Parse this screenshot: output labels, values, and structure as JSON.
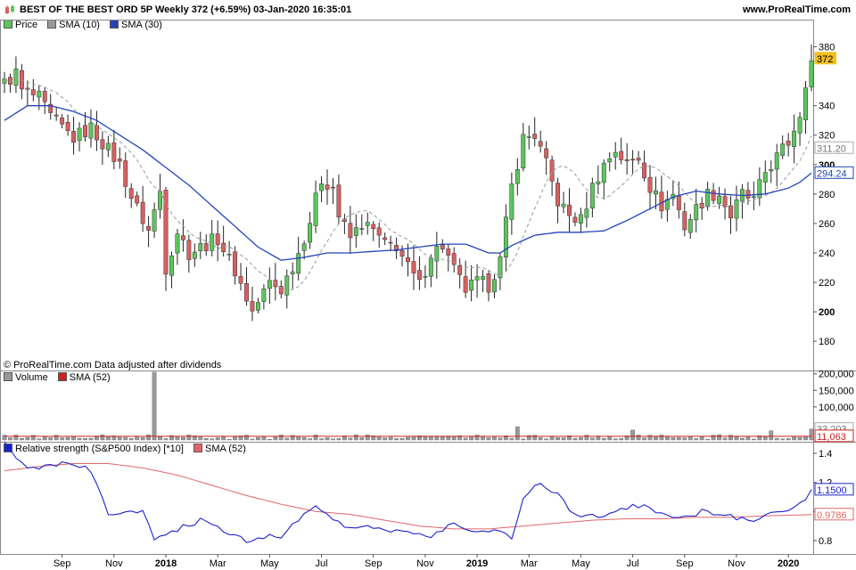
{
  "header": {
    "title": "BEST OF THE BEST ORD 5P Weekly 372 (+6.59%) 03-Jan-2020 16:35:01",
    "site": "www.ProRealTime.com"
  },
  "notice": "© ProRealTime.com  Data adjusted after dividends",
  "colors": {
    "up": "#5cc55c",
    "down": "#d96060",
    "sma10": "#999999",
    "sma30": "#2244bb",
    "volume": "#999999",
    "vol_sma": "#cc2222",
    "rs": "#1a22cc",
    "rs_sma": "#e06666",
    "price_tag": "#f0c020"
  },
  "chart_data": [
    {
      "type": "candlestick",
      "legend": [
        {
          "label": "Price",
          "color_key": "up"
        },
        {
          "label": "SMA (10)",
          "color_key": "sma10"
        },
        {
          "label": "SMA (30)",
          "color_key": "sma30"
        }
      ],
      "ylim": [
        168,
        390
      ],
      "yticks": [
        180,
        200,
        220,
        240,
        260,
        280,
        300,
        320,
        340,
        380
      ],
      "yticks_bold": [
        200,
        300
      ],
      "value_tags": [
        {
          "text": "372",
          "value": 372,
          "style": "price"
        },
        {
          "text": "311.20",
          "value": 311.2,
          "style": "sma10"
        },
        {
          "text": "294.24",
          "value": 294.24,
          "style": "sma30"
        }
      ],
      "anchors": [
        [
          0,
          355
        ],
        [
          2,
          362
        ],
        [
          3,
          350
        ],
        [
          6,
          345
        ],
        [
          8,
          332
        ],
        [
          12,
          318
        ],
        [
          15,
          325
        ],
        [
          20,
          300
        ],
        [
          22,
          278
        ],
        [
          25,
          255
        ],
        [
          27,
          282
        ],
        [
          28,
          230
        ],
        [
          30,
          255
        ],
        [
          32,
          240
        ],
        [
          35,
          246
        ],
        [
          37,
          250
        ],
        [
          40,
          228
        ],
        [
          43,
          200
        ],
        [
          46,
          220
        ],
        [
          48,
          215
        ],
        [
          51,
          240
        ],
        [
          53,
          262
        ],
        [
          55,
          290
        ],
        [
          57,
          285
        ],
        [
          58,
          265
        ],
        [
          60,
          250
        ],
        [
          62,
          260
        ],
        [
          64,
          255
        ],
        [
          66,
          245
        ],
        [
          68,
          245
        ],
        [
          70,
          230
        ],
        [
          72,
          218
        ],
        [
          74,
          240
        ],
        [
          76,
          245
        ],
        [
          78,
          228
        ],
        [
          80,
          215
        ],
        [
          82,
          220
        ],
        [
          84,
          218
        ],
        [
          86,
          235
        ],
        [
          88,
          285
        ],
        [
          90,
          318
        ],
        [
          92,
          320
        ],
        [
          94,
          300
        ],
        [
          96,
          275
        ],
        [
          98,
          265
        ],
        [
          100,
          262
        ],
        [
          102,
          285
        ],
        [
          104,
          300
        ],
        [
          106,
          310
        ],
        [
          108,
          300
        ],
        [
          110,
          305
        ],
        [
          112,
          285
        ],
        [
          114,
          272
        ],
        [
          116,
          280
        ],
        [
          118,
          258
        ],
        [
          120,
          270
        ],
        [
          122,
          280
        ],
        [
          124,
          280
        ],
        [
          126,
          265
        ],
        [
          128,
          280
        ],
        [
          130,
          275
        ],
        [
          132,
          295
        ],
        [
          134,
          305
        ],
        [
          136,
          315
        ],
        [
          138,
          335
        ],
        [
          139,
          357
        ],
        [
          140,
          370
        ]
      ],
      "sma30_anchors": [
        [
          0,
          330
        ],
        [
          4,
          340
        ],
        [
          8,
          340
        ],
        [
          12,
          336
        ],
        [
          16,
          330
        ],
        [
          20,
          320
        ],
        [
          24,
          310
        ],
        [
          28,
          298
        ],
        [
          32,
          286
        ],
        [
          36,
          272
        ],
        [
          40,
          258
        ],
        [
          44,
          244
        ],
        [
          48,
          235
        ],
        [
          52,
          237
        ],
        [
          56,
          240
        ],
        [
          60,
          240
        ],
        [
          64,
          241
        ],
        [
          68,
          242
        ],
        [
          72,
          244
        ],
        [
          76,
          246
        ],
        [
          80,
          246
        ],
        [
          84,
          240
        ],
        [
          86,
          240
        ],
        [
          88,
          245
        ],
        [
          92,
          252
        ],
        [
          96,
          254
        ],
        [
          100,
          254
        ],
        [
          104,
          255
        ],
        [
          108,
          262
        ],
        [
          112,
          270
        ],
        [
          116,
          278
        ],
        [
          120,
          282
        ],
        [
          124,
          280
        ],
        [
          128,
          279
        ],
        [
          132,
          280
        ],
        [
          136,
          284
        ],
        [
          138,
          288
        ],
        [
          140,
          294.24
        ]
      ]
    },
    {
      "type": "bar",
      "legend": [
        {
          "label": "Volume",
          "color_key": "volume"
        },
        {
          "label": "SMA (52)",
          "color_key": "vol_sma"
        }
      ],
      "ylim": [
        0,
        210000
      ],
      "yticks": [
        100000,
        150000,
        200000
      ],
      "ytick_labels": [
        "100,000",
        "150,000",
        "200,000"
      ],
      "value_tags": [
        {
          "text": "33,203",
          "value": 33203,
          "style": "volume"
        },
        {
          "text": "11,063",
          "value": 11063,
          "style": "vol_sma"
        }
      ],
      "spikes": [
        [
          26,
          205000
        ],
        [
          89,
          40000
        ],
        [
          109,
          30000
        ],
        [
          133,
          28000
        ],
        [
          140,
          33203
        ]
      ],
      "sma_value": 11063
    },
    {
      "type": "line",
      "legend": [
        {
          "label": "Relative strength (S&P500 Index) [*10]",
          "color_key": "rs"
        },
        {
          "label": "SMA (52)",
          "color_key": "rs_sma"
        }
      ],
      "ylim": [
        0.72,
        1.48
      ],
      "yticks": [
        0.8,
        1.0,
        1.2,
        1.4
      ],
      "ytick_labels": [
        "0.8",
        "1",
        "1.2",
        "1.4"
      ],
      "value_tags": [
        {
          "text": "1.1500",
          "value": 1.15,
          "style": "rs"
        },
        {
          "text": "0.9786",
          "value": 0.9786,
          "style": "rs_sma"
        }
      ],
      "rs_anchors": [
        [
          0,
          1.46
        ],
        [
          3,
          1.32
        ],
        [
          5,
          1.3
        ],
        [
          8,
          1.33
        ],
        [
          12,
          1.32
        ],
        [
          15,
          1.28
        ],
        [
          18,
          0.98
        ],
        [
          22,
          0.99
        ],
        [
          24,
          1.02
        ],
        [
          26,
          0.82
        ],
        [
          30,
          0.88
        ],
        [
          33,
          0.92
        ],
        [
          35,
          0.95
        ],
        [
          38,
          0.86
        ],
        [
          41,
          0.82
        ],
        [
          43,
          0.78
        ],
        [
          46,
          0.85
        ],
        [
          48,
          0.8
        ],
        [
          52,
          1.0
        ],
        [
          54,
          1.03
        ],
        [
          56,
          1.0
        ],
        [
          59,
          0.88
        ],
        [
          62,
          0.9
        ],
        [
          66,
          0.88
        ],
        [
          70,
          0.86
        ],
        [
          74,
          0.82
        ],
        [
          78,
          0.92
        ],
        [
          82,
          0.85
        ],
        [
          86,
          0.88
        ],
        [
          88,
          0.82
        ],
        [
          90,
          1.1
        ],
        [
          93,
          1.2
        ],
        [
          96,
          1.12
        ],
        [
          98,
          1.02
        ],
        [
          100,
          0.98
        ],
        [
          103,
          0.96
        ],
        [
          106,
          1.01
        ],
        [
          109,
          1.04
        ],
        [
          112,
          1.02
        ],
        [
          115,
          0.98
        ],
        [
          118,
          0.96
        ],
        [
          121,
          1.0
        ],
        [
          124,
          0.98
        ],
        [
          127,
          0.96
        ],
        [
          130,
          0.95
        ],
        [
          133,
          0.99
        ],
        [
          136,
          1.0
        ],
        [
          138,
          1.05
        ],
        [
          140,
          1.15
        ]
      ],
      "sma_anchors": [
        [
          0,
          1.28
        ],
        [
          6,
          1.31
        ],
        [
          12,
          1.33
        ],
        [
          18,
          1.33
        ],
        [
          24,
          1.3
        ],
        [
          30,
          1.25
        ],
        [
          36,
          1.18
        ],
        [
          42,
          1.11
        ],
        [
          48,
          1.05
        ],
        [
          54,
          1.0
        ],
        [
          60,
          0.98
        ],
        [
          66,
          0.94
        ],
        [
          72,
          0.9
        ],
        [
          78,
          0.88
        ],
        [
          84,
          0.88
        ],
        [
          90,
          0.9
        ],
        [
          96,
          0.92
        ],
        [
          102,
          0.94
        ],
        [
          108,
          0.95
        ],
        [
          114,
          0.95
        ],
        [
          120,
          0.96
        ],
        [
          126,
          0.96
        ],
        [
          132,
          0.97
        ],
        [
          140,
          0.9786
        ]
      ]
    }
  ],
  "x_axis": {
    "count": 141,
    "labels": [
      {
        "text": "Sep",
        "i": 10
      },
      {
        "text": "Nov",
        "i": 19
      },
      {
        "text": "2018",
        "i": 28,
        "bold": true
      },
      {
        "text": "Mar",
        "i": 37
      },
      {
        "text": "May",
        "i": 46
      },
      {
        "text": "Jul",
        "i": 55
      },
      {
        "text": "Sep",
        "i": 64
      },
      {
        "text": "Nov",
        "i": 73
      },
      {
        "text": "2019",
        "i": 82,
        "bold": true
      },
      {
        "text": "Mar",
        "i": 91
      },
      {
        "text": "May",
        "i": 100
      },
      {
        "text": "Jul",
        "i": 109
      },
      {
        "text": "Sep",
        "i": 118
      },
      {
        "text": "Nov",
        "i": 127
      },
      {
        "text": "2020",
        "i": 136,
        "bold": true
      }
    ]
  }
}
